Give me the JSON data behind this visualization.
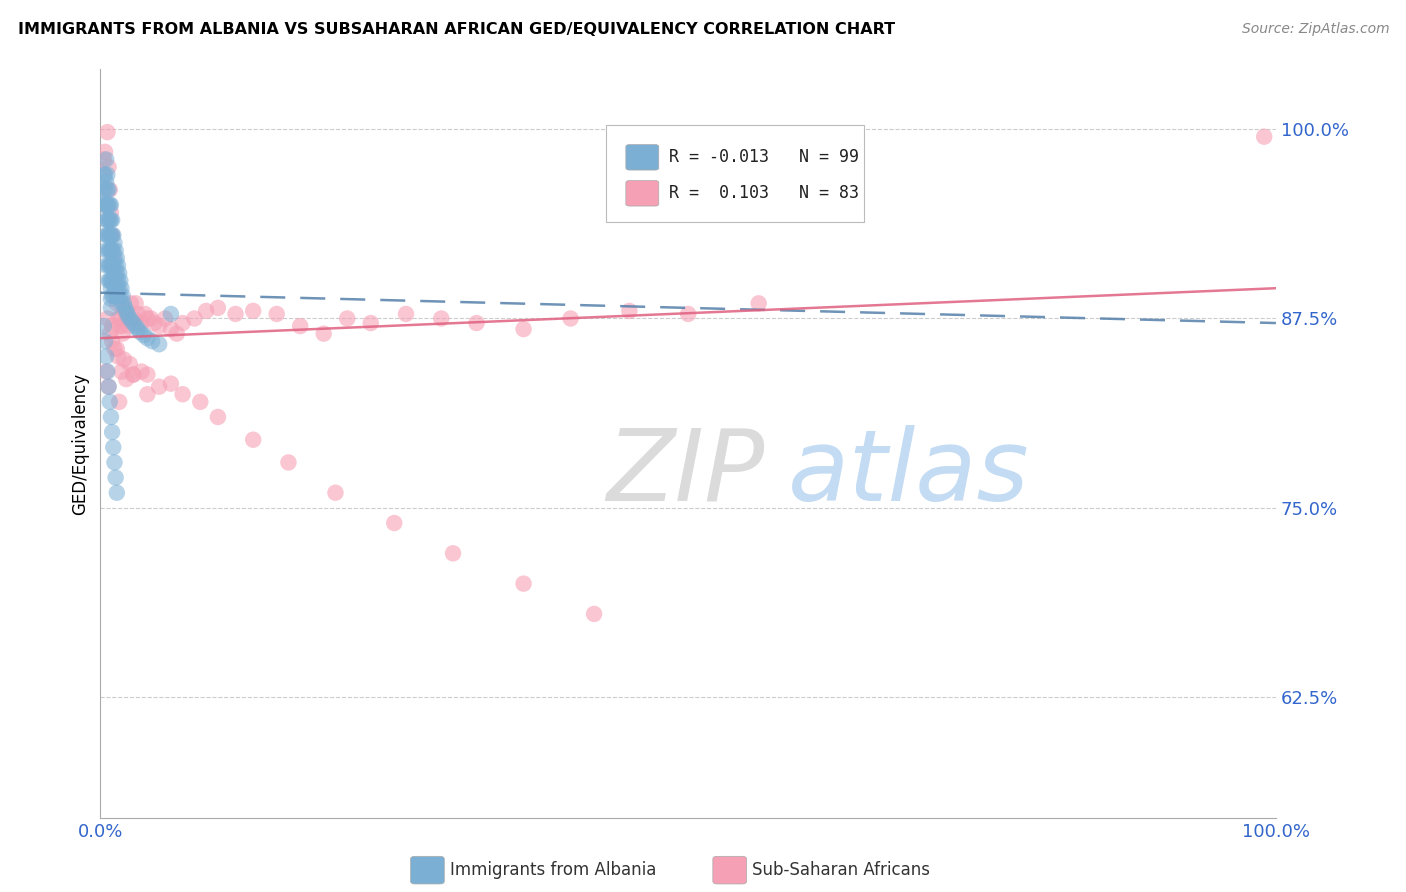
{
  "title": "IMMIGRANTS FROM ALBANIA VS SUBSAHARAN AFRICAN GED/EQUIVALENCY CORRELATION CHART",
  "source": "Source: ZipAtlas.com",
  "ylabel": "GED/Equivalency",
  "ytick_labels": [
    "100.0%",
    "87.5%",
    "75.0%",
    "62.5%"
  ],
  "ytick_values": [
    1.0,
    0.875,
    0.75,
    0.625
  ],
  "xlim": [
    0.0,
    1.0
  ],
  "ylim": [
    0.545,
    1.04
  ],
  "legend_albania_r": "-0.013",
  "legend_albania_n": "99",
  "legend_subsaharan_r": "0.103",
  "legend_subsaharan_n": "83",
  "albania_color": "#7BAFD4",
  "subsaharan_color": "#F5A0B5",
  "albania_line_color": "#5580AA",
  "subsaharan_line_color": "#E06080",
  "watermark_zip": "ZIP",
  "watermark_atlas": "atlas",
  "watermark_zip_color": "#CCCCCC",
  "watermark_atlas_color": "#AACCEE",
  "albania_x": [
    0.002,
    0.003,
    0.003,
    0.004,
    0.004,
    0.004,
    0.005,
    0.005,
    0.005,
    0.005,
    0.005,
    0.005,
    0.005,
    0.006,
    0.006,
    0.006,
    0.006,
    0.006,
    0.007,
    0.007,
    0.007,
    0.007,
    0.007,
    0.007,
    0.007,
    0.008,
    0.008,
    0.008,
    0.008,
    0.008,
    0.008,
    0.009,
    0.009,
    0.009,
    0.009,
    0.009,
    0.009,
    0.009,
    0.009,
    0.009,
    0.01,
    0.01,
    0.01,
    0.01,
    0.01,
    0.01,
    0.011,
    0.011,
    0.011,
    0.011,
    0.011,
    0.012,
    0.012,
    0.012,
    0.012,
    0.013,
    0.013,
    0.013,
    0.013,
    0.014,
    0.014,
    0.014,
    0.015,
    0.015,
    0.015,
    0.016,
    0.016,
    0.017,
    0.017,
    0.018,
    0.018,
    0.019,
    0.02,
    0.021,
    0.022,
    0.023,
    0.024,
    0.026,
    0.028,
    0.03,
    0.032,
    0.034,
    0.037,
    0.04,
    0.044,
    0.05,
    0.003,
    0.004,
    0.005,
    0.006,
    0.007,
    0.008,
    0.009,
    0.01,
    0.011,
    0.012,
    0.013,
    0.014,
    0.06
  ],
  "albania_y": [
    0.96,
    0.97,
    0.95,
    0.97,
    0.96,
    0.95,
    0.98,
    0.965,
    0.95,
    0.94,
    0.93,
    0.92,
    0.91,
    0.97,
    0.96,
    0.95,
    0.94,
    0.93,
    0.96,
    0.95,
    0.94,
    0.93,
    0.92,
    0.91,
    0.9,
    0.95,
    0.94,
    0.93,
    0.92,
    0.91,
    0.9,
    0.95,
    0.94,
    0.93,
    0.92,
    0.91,
    0.9,
    0.895,
    0.888,
    0.882,
    0.94,
    0.93,
    0.92,
    0.91,
    0.9,
    0.89,
    0.93,
    0.92,
    0.91,
    0.9,
    0.89,
    0.925,
    0.915,
    0.905,
    0.895,
    0.92,
    0.91,
    0.9,
    0.89,
    0.915,
    0.905,
    0.895,
    0.91,
    0.9,
    0.89,
    0.905,
    0.895,
    0.9,
    0.89,
    0.895,
    0.885,
    0.89,
    0.885,
    0.882,
    0.88,
    0.878,
    0.876,
    0.874,
    0.872,
    0.87,
    0.868,
    0.866,
    0.864,
    0.862,
    0.86,
    0.858,
    0.87,
    0.86,
    0.85,
    0.84,
    0.83,
    0.82,
    0.81,
    0.8,
    0.79,
    0.78,
    0.77,
    0.76,
    0.878
  ],
  "subsaharan_x": [
    0.003,
    0.004,
    0.006,
    0.007,
    0.008,
    0.009,
    0.01,
    0.011,
    0.012,
    0.013,
    0.014,
    0.015,
    0.016,
    0.017,
    0.018,
    0.019,
    0.02,
    0.022,
    0.024,
    0.026,
    0.028,
    0.03,
    0.032,
    0.035,
    0.038,
    0.04,
    0.043,
    0.046,
    0.05,
    0.055,
    0.06,
    0.065,
    0.07,
    0.08,
    0.09,
    0.1,
    0.115,
    0.13,
    0.15,
    0.17,
    0.19,
    0.21,
    0.23,
    0.26,
    0.29,
    0.32,
    0.36,
    0.4,
    0.45,
    0.5,
    0.56,
    0.006,
    0.008,
    0.01,
    0.012,
    0.015,
    0.018,
    0.022,
    0.025,
    0.028,
    0.035,
    0.04,
    0.05,
    0.06,
    0.07,
    0.085,
    0.1,
    0.13,
    0.16,
    0.2,
    0.25,
    0.3,
    0.36,
    0.42,
    0.01,
    0.014,
    0.02,
    0.028,
    0.04,
    0.99,
    0.005,
    0.007,
    0.016
  ],
  "subsaharan_y": [
    0.98,
    0.985,
    0.998,
    0.975,
    0.96,
    0.945,
    0.93,
    0.915,
    0.9,
    0.895,
    0.885,
    0.875,
    0.87,
    0.875,
    0.87,
    0.865,
    0.88,
    0.875,
    0.87,
    0.885,
    0.875,
    0.885,
    0.878,
    0.872,
    0.878,
    0.875,
    0.875,
    0.872,
    0.87,
    0.875,
    0.868,
    0.865,
    0.872,
    0.875,
    0.88,
    0.882,
    0.878,
    0.88,
    0.878,
    0.87,
    0.865,
    0.875,
    0.872,
    0.878,
    0.875,
    0.872,
    0.868,
    0.875,
    0.88,
    0.878,
    0.885,
    0.875,
    0.865,
    0.87,
    0.855,
    0.85,
    0.84,
    0.835,
    0.845,
    0.838,
    0.84,
    0.838,
    0.83,
    0.832,
    0.825,
    0.82,
    0.81,
    0.795,
    0.78,
    0.76,
    0.74,
    0.72,
    0.7,
    0.68,
    0.86,
    0.855,
    0.848,
    0.838,
    0.825,
    0.995,
    0.84,
    0.83,
    0.82
  ]
}
